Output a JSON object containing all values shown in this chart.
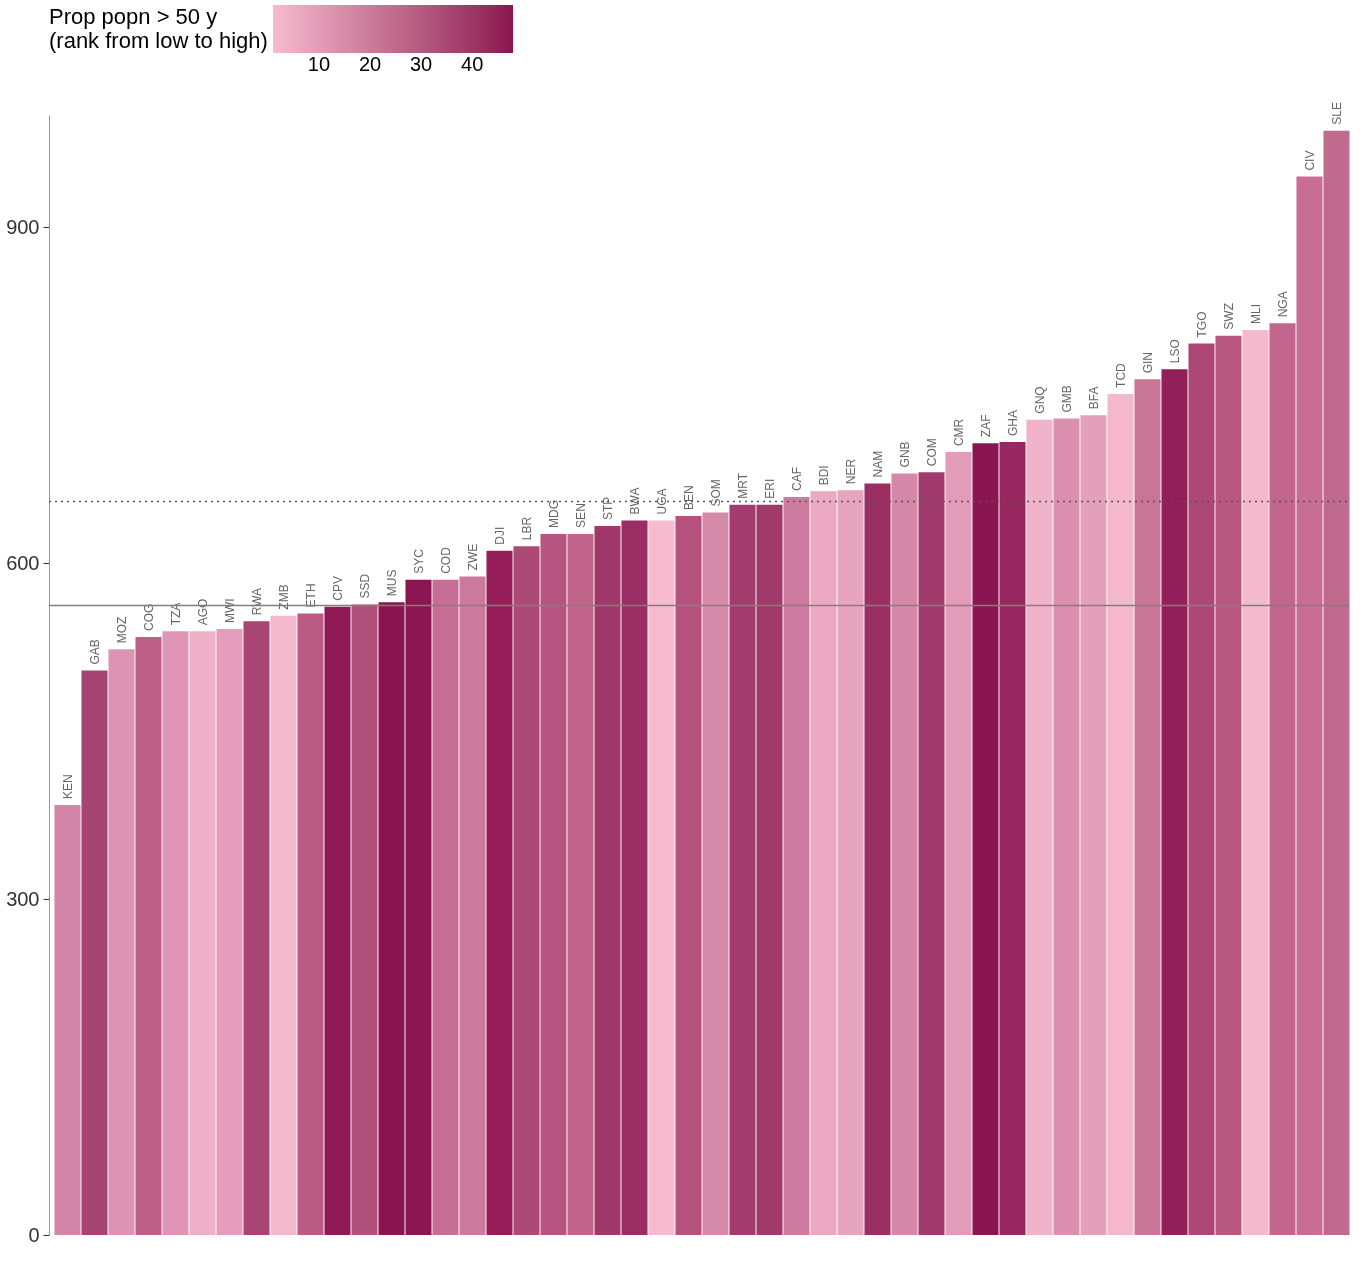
{
  "chart_data": {
    "type": "bar",
    "categories": [
      "KEN",
      "GAB",
      "MOZ",
      "COG",
      "TZA",
      "AGO",
      "MWI",
      "RWA",
      "ZMB",
      "ETH",
      "CPV",
      "SSD",
      "MUS",
      "SYC",
      "COD",
      "ZWE",
      "DJI",
      "LBR",
      "MDG",
      "SEN",
      "STP",
      "BWA",
      "UGA",
      "BEN",
      "SOM",
      "MRT",
      "ERI",
      "CAF",
      "BDI",
      "NER",
      "NAM",
      "GNB",
      "COM",
      "CMR",
      "ZAF",
      "GHA",
      "GNQ",
      "GMB",
      "BFA",
      "TCD",
      "GIN",
      "LSO",
      "TGO",
      "SWZ",
      "MLI",
      "NGA",
      "CIV",
      "SLE"
    ],
    "values": [
      384,
      504,
      523,
      534,
      539,
      539,
      541,
      548,
      553,
      555,
      561,
      563,
      565,
      585,
      585,
      588,
      611,
      615,
      626,
      626,
      633,
      638,
      638,
      642,
      645,
      652,
      652,
      659,
      664,
      665,
      671,
      680,
      681,
      699,
      707,
      708,
      728,
      729,
      732,
      751,
      764,
      773,
      796,
      803,
      808,
      814,
      945,
      986
    ],
    "colors": [
      "#d285a5",
      "#a54470",
      "#dc94b2",
      "#bd5f87",
      "#de96b4",
      "#eeb0c7",
      "#e49dba",
      "#a84572",
      "#f3b8cc",
      "#bb5b83",
      "#901a55",
      "#b04f7a",
      "#8a1450",
      "#8c1651",
      "#c66e94",
      "#cb7a9d",
      "#951e58",
      "#ab4a75",
      "#b55580",
      "#c06489",
      "#a0386a",
      "#9a2d62",
      "#f6bbcf",
      "#b4527d",
      "#d68aa9",
      "#a33c6d",
      "#a03a6a",
      "#cd7c9f",
      "#eaa8c1",
      "#e7a4be",
      "#9b2f63",
      "#d487a6",
      "#a13b6b",
      "#e29bb8",
      "#8b1551",
      "#972860",
      "#f0b3c9",
      "#da90ae",
      "#e3a0bb",
      "#f4b8cd",
      "#c97597",
      "#921f59",
      "#ad4876",
      "#b8577f",
      "#f4b9cd",
      "#c2668d",
      "#c86e95",
      "#c06a8d"
    ],
    "ylim": [
      0,
      1000
    ],
    "yticks": [
      0,
      300,
      600,
      900
    ],
    "grid": false,
    "tick_labels": "y",
    "clabel": "Prop popn > 50 y\n(rank from low to high)",
    "clim": [
      1,
      48
    ],
    "cticks": [
      10,
      20,
      30,
      40
    ],
    "ref_lines": [
      {
        "axis": "y",
        "value": 655,
        "line_style": "dotted",
        "color": "#555555"
      },
      {
        "axis": "y",
        "value": 562,
        "line_style": "solid",
        "color": "#7f7f7f"
      }
    ]
  }
}
